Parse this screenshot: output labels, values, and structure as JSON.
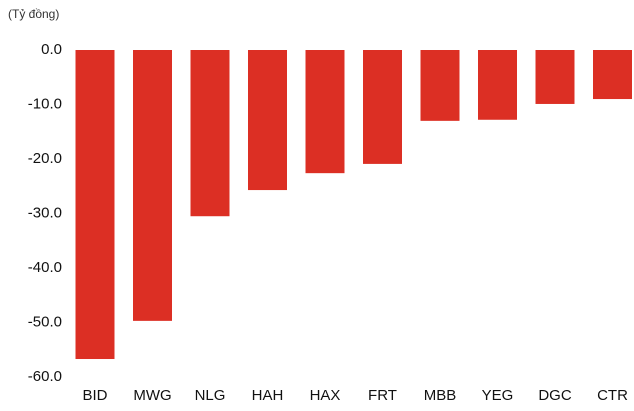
{
  "chart_data": {
    "type": "bar",
    "y_label": "(Tỷ đồng)",
    "categories": [
      "BID",
      "MWG",
      "NLG",
      "HAH",
      "HAX",
      "FRT",
      "MBB",
      "YEG",
      "DGC",
      "CTR"
    ],
    "values": [
      -56.7,
      -49.7,
      -30.5,
      -25.7,
      -22.6,
      -20.9,
      -13.0,
      -12.8,
      -9.9,
      -9.0
    ],
    "color": "#dc2f24",
    "ylim": [
      -60,
      0
    ],
    "yticks": [
      {
        "value": 0,
        "label": "0.0"
      },
      {
        "value": -10,
        "label": "-10.0"
      },
      {
        "value": -20,
        "label": "-20.0"
      },
      {
        "value": -30,
        "label": "-30.0"
      },
      {
        "value": -40,
        "label": "-40.0"
      },
      {
        "value": -50,
        "label": "-50.0"
      },
      {
        "value": -60,
        "label": "-60.0"
      }
    ],
    "grid": false
  }
}
